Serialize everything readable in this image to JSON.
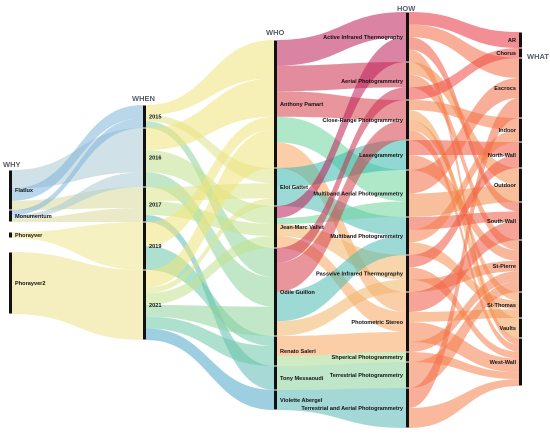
{
  "columns": [
    {
      "id": "why",
      "title": "WHY",
      "nodes": [
        "Flatlux",
        "Monumentum",
        "Phorayver",
        "Phorayver2"
      ]
    },
    {
      "id": "when",
      "title": "WHEN",
      "nodes": [
        "2015",
        "2016",
        "2017",
        "2019",
        "2021"
      ]
    },
    {
      "id": "who",
      "title": "WHO",
      "nodes": [
        "Anthony Pamart",
        "Eloi Gattet",
        "Jean-Marc Vallet",
        "Odile Guillon",
        "Renato Saleri",
        "Tony Messaoudi",
        "Violette Abergel"
      ]
    },
    {
      "id": "how",
      "title": "HOW",
      "nodes": [
        "Active Infrared Thermography",
        "Aerial Photogrammetry",
        "Close-Range Photogrammetry",
        "Lasergrammetry",
        "Multiband Aerial Photogrammetry",
        "Multiband Photogrammetry",
        "Passvive Infrared Thermography",
        "Photometric Stereo",
        "Shperical Photogrammetry",
        "Terrestrial Photogrammetry",
        "Terrestrial and Aerial Photogrammetry"
      ]
    },
    {
      "id": "what",
      "title": "WHAT",
      "nodes": [
        "AR",
        "Chorus",
        "Escrocs",
        "Indoor",
        "North-Wall",
        "Outdoor",
        "South-Wall",
        "St-Pierre",
        "St-Thomas",
        "Vaults",
        "West-Wall"
      ]
    }
  ],
  "node_colors": {
    "why": [
      "#4f90bd",
      "#5a8fc0",
      "#6c78c6",
      "#8470c2"
    ],
    "when": [
      "#7fb4d8",
      "#a9c8d4",
      "#d9d99a",
      "#eee58c",
      "#ede088"
    ],
    "who": [
      "#f1e37a",
      "#dde38a",
      "#c1e18e",
      "#8fd39a",
      "#69c6a6",
      "#5fbcb4",
      "#4ea7c6"
    ],
    "how": [
      "#bd1e58",
      "#cc2e4c",
      "#d63e48",
      "#36b8ae",
      "#6ed49c",
      "#4dbcb2",
      "#f0b468",
      "#f8a560",
      "#a6da8e",
      "#8bd19a",
      "#58b8b6"
    ],
    "what": [
      "#e8333d",
      "#ee4943",
      "#f26c46",
      "#f47e48",
      "#f0553f",
      "#f38a4b",
      "#ee5a41",
      "#f27c4a",
      "#f49152",
      "#f4a158",
      "#f67f4c"
    ]
  },
  "links": [
    [
      "why",
      0,
      "when",
      1,
      6
    ],
    [
      "why",
      0,
      "when",
      0,
      4
    ],
    [
      "why",
      0,
      "when",
      2,
      3
    ],
    [
      "why",
      1,
      "when",
      0,
      3
    ],
    [
      "why",
      1,
      "when",
      1,
      2
    ],
    [
      "why",
      1,
      "when",
      2,
      2
    ],
    [
      "why",
      2,
      "when",
      3,
      2
    ],
    [
      "why",
      3,
      "when",
      4,
      10
    ],
    [
      "when",
      0,
      "who",
      0,
      3
    ],
    [
      "when",
      0,
      "who",
      1,
      2
    ],
    [
      "when",
      0,
      "who",
      3,
      2
    ],
    [
      "when",
      1,
      "who",
      0,
      3
    ],
    [
      "when",
      1,
      "who",
      2,
      3
    ],
    [
      "when",
      1,
      "who",
      3,
      2
    ],
    [
      "when",
      2,
      "who",
      1,
      2
    ],
    [
      "when",
      2,
      "who",
      2,
      2
    ],
    [
      "when",
      2,
      "who",
      5,
      1
    ],
    [
      "when",
      3,
      "who",
      0,
      1
    ],
    [
      "when",
      3,
      "who",
      4,
      1
    ],
    [
      "when",
      4,
      "who",
      0,
      3
    ],
    [
      "when",
      4,
      "who",
      1,
      1
    ],
    [
      "when",
      4,
      "who",
      2,
      2
    ],
    [
      "when",
      4,
      "who",
      3,
      2
    ],
    [
      "when",
      4,
      "who",
      4,
      2
    ],
    [
      "when",
      4,
      "who",
      6,
      2
    ],
    [
      "who",
      0,
      "how",
      0,
      2
    ],
    [
      "who",
      0,
      "how",
      1,
      2
    ],
    [
      "who",
      0,
      "how",
      2,
      2
    ],
    [
      "who",
      0,
      "how",
      4,
      2
    ],
    [
      "who",
      0,
      "how",
      7,
      2
    ],
    [
      "who",
      1,
      "how",
      3,
      2
    ],
    [
      "who",
      1,
      "how",
      5,
      2
    ],
    [
      "who",
      2,
      "how",
      0,
      2
    ],
    [
      "who",
      2,
      "how",
      4,
      1
    ],
    [
      "who",
      2,
      "how",
      6,
      2
    ],
    [
      "who",
      2,
      "how",
      7,
      2
    ],
    [
      "who",
      3,
      "how",
      1,
      1
    ],
    [
      "who",
      3,
      "how",
      2,
      2
    ],
    [
      "who",
      3,
      "how",
      5,
      2
    ],
    [
      "who",
      3,
      "how",
      6,
      1
    ],
    [
      "who",
      4,
      "how",
      7,
      2
    ],
    [
      "who",
      4,
      "how",
      8,
      1
    ],
    [
      "who",
      5,
      "how",
      9,
      1
    ],
    [
      "who",
      6,
      "how",
      10,
      2
    ],
    [
      "how",
      0,
      "what",
      0,
      1
    ],
    [
      "how",
      0,
      "what",
      2,
      1
    ],
    [
      "how",
      0,
      "what",
      6,
      1
    ],
    [
      "how",
      0,
      "what",
      10,
      1
    ],
    [
      "how",
      1,
      "what",
      5,
      1
    ],
    [
      "how",
      1,
      "what",
      7,
      1
    ],
    [
      "how",
      1,
      "what",
      1,
      1
    ],
    [
      "how",
      2,
      "what",
      3,
      1
    ],
    [
      "how",
      2,
      "what",
      9,
      1
    ],
    [
      "how",
      2,
      "what",
      8,
      1
    ],
    [
      "how",
      2,
      "what",
      10,
      1
    ],
    [
      "how",
      3,
      "what",
      4,
      1
    ],
    [
      "how",
      3,
      "what",
      7,
      1
    ],
    [
      "how",
      4,
      "what",
      2,
      1
    ],
    [
      "how",
      4,
      "what",
      5,
      1
    ],
    [
      "how",
      5,
      "what",
      6,
      1
    ],
    [
      "how",
      5,
      "what",
      3,
      1
    ],
    [
      "how",
      5,
      "what",
      8,
      1
    ],
    [
      "how",
      6,
      "what",
      4,
      1
    ],
    [
      "how",
      6,
      "what",
      10,
      1
    ],
    [
      "how",
      6,
      "what",
      7,
      1
    ],
    [
      "how",
      7,
      "what",
      6,
      2
    ],
    [
      "how",
      7,
      "what",
      8,
      1
    ],
    [
      "how",
      7,
      "what",
      10,
      2
    ],
    [
      "how",
      7,
      "what",
      7,
      1
    ],
    [
      "how",
      8,
      "what",
      10,
      1
    ],
    [
      "how",
      9,
      "what",
      7,
      1
    ],
    [
      "how",
      10,
      "what",
      2,
      1
    ],
    [
      "how",
      10,
      "what",
      10,
      1
    ]
  ]
}
